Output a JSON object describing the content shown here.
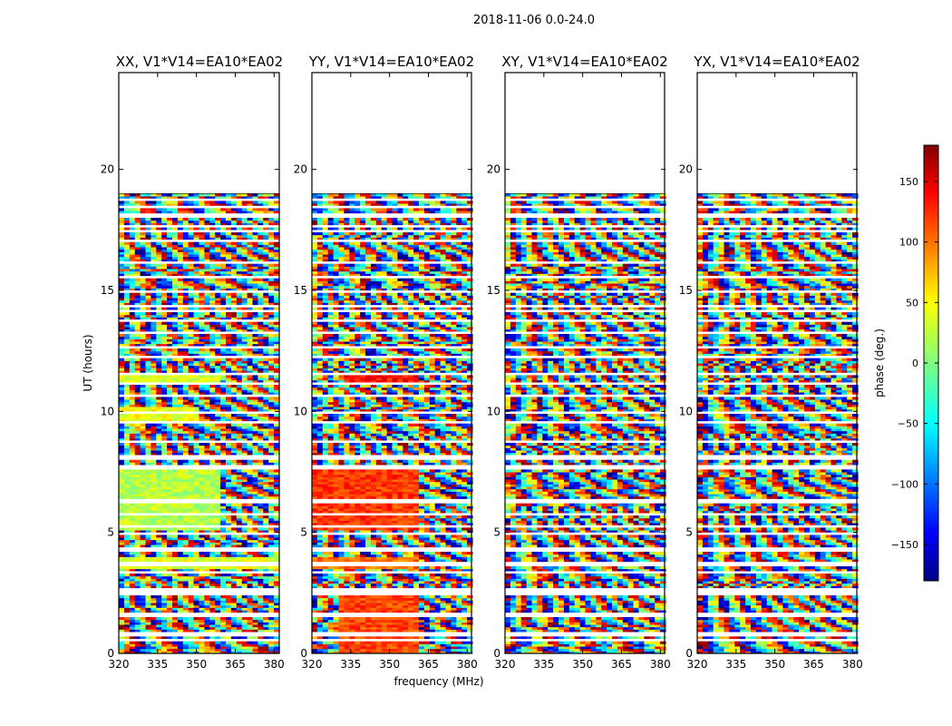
{
  "figure_title": "2018-11-06 0.0-24.0",
  "chart_data": {
    "type": "heatmap",
    "title": "2018-11-06 0.0-24.0",
    "xlabel": "frequency (MHz)",
    "ylabel": "UT (hours)",
    "xlim": [
      320,
      382
    ],
    "ylim": [
      0,
      24
    ],
    "xticks": [
      320,
      335,
      350,
      365,
      380
    ],
    "yticks": [
      0,
      5,
      10,
      15,
      20
    ],
    "data_extent_ut": [
      0,
      19
    ],
    "colorbar": {
      "label": "phase (deg.)",
      "range": [
        -180,
        180
      ],
      "ticks": [
        -150,
        -100,
        -50,
        0,
        50,
        100,
        150
      ],
      "tick_labels": [
        "−150",
        "−100",
        "−50",
        "0",
        "50",
        "100",
        "150"
      ],
      "colormap": "jet"
    },
    "flagged_ut_rows_hours": [
      0.55,
      0.8,
      1.6,
      2.5,
      2.65,
      3.35,
      3.7,
      4.3,
      4.95,
      5.25,
      5.75,
      6.3,
      7.7,
      8.05,
      8.15,
      8.75,
      9.55,
      9.95,
      10.65,
      11.15,
      11.55,
      12.25,
      12.65,
      13.25,
      13.75,
      14.15,
      14.35,
      14.95,
      15.55,
      16.15,
      17.05,
      17.45,
      17.65,
      18.1,
      18.45,
      18.75
    ],
    "panels": [
      {
        "name": "XX",
        "title": "XX, V1*V14=EA10*EA02",
        "coherent_regions": [
          {
            "ut": [
              5.1,
              7.8
            ],
            "freq": [
              320,
              360
            ],
            "phase_deg": 20
          },
          {
            "ut": [
              3.5,
              4.0
            ],
            "freq": [
              320,
              382
            ],
            "phase_deg": 35
          },
          {
            "ut": [
              11.2,
              11.6
            ],
            "freq": [
              320,
              360
            ],
            "phase_deg": 30
          },
          {
            "ut": [
              9.5,
              10.2
            ],
            "freq": [
              320,
              352
            ],
            "phase_deg": 40
          }
        ]
      },
      {
        "name": "YY",
        "title": "YY, V1*V14=EA10*EA02",
        "coherent_regions": [
          {
            "ut": [
              5.1,
              7.8
            ],
            "freq": [
              320,
              362
            ],
            "phase_deg": 115
          },
          {
            "ut": [
              3.5,
              4.0
            ],
            "freq": [
              320,
              362
            ],
            "phase_deg": 95
          },
          {
            "ut": [
              11.2,
              11.6
            ],
            "freq": [
              332,
              362
            ],
            "phase_deg": 130
          },
          {
            "ut": [
              0.0,
              2.6
            ],
            "freq": [
              330,
              362
            ],
            "phase_deg": 110
          }
        ]
      },
      {
        "name": "XY",
        "title": "XY, V1*V14=EA10*EA02",
        "coherent_regions": []
      },
      {
        "name": "YX",
        "title": "YX, V1*V14=EA10*EA02",
        "coherent_regions": []
      }
    ]
  }
}
